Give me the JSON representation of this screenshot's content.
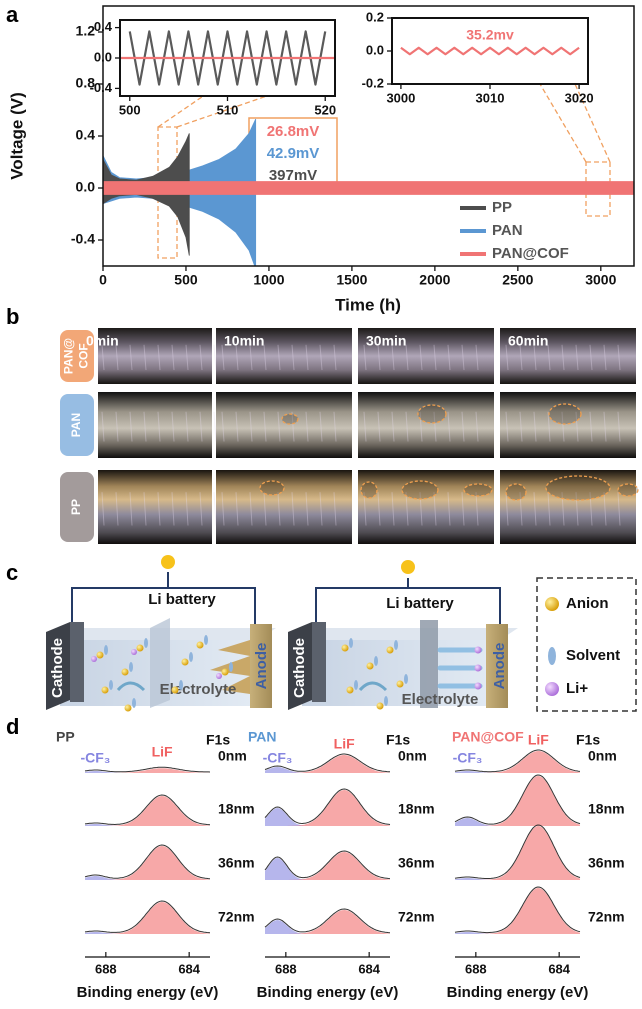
{
  "panel_labels": [
    "a",
    "b",
    "c",
    "d"
  ],
  "chart_data": [
    {
      "type": "line",
      "xlabel": "Time (h)",
      "ylabel": "Voltage (V)",
      "xlim": [
        0,
        3200
      ],
      "ylim": [
        -0.6,
        1.4
      ],
      "xticks": [
        0,
        500,
        1000,
        1500,
        2000,
        2500,
        3000
      ],
      "yticks": [
        -0.4,
        {
          "value": 0,
          "label": "0.0"
        },
        0.4,
        0.8,
        1.2
      ],
      "legend_position": "lower right",
      "series": [
        {
          "name": "PP",
          "color": "#4d4d4d",
          "x": [
            0,
            50,
            100,
            200,
            300,
            400,
            450,
            500,
            520
          ],
          "high": [
            0.22,
            0.1,
            0.07,
            0.06,
            0.09,
            0.16,
            0.24,
            0.36,
            0.42
          ],
          "low": [
            -0.12,
            -0.08,
            -0.06,
            -0.05,
            -0.08,
            -0.14,
            -0.22,
            -0.38,
            -0.52
          ]
        },
        {
          "name": "PAN",
          "color": "#5b97d2",
          "x": [
            0,
            50,
            100,
            200,
            300,
            400,
            500,
            600,
            700,
            800,
            880,
            920
          ],
          "high": [
            0.25,
            0.12,
            0.08,
            0.07,
            0.08,
            0.1,
            0.13,
            0.17,
            0.22,
            0.3,
            0.42,
            0.53
          ],
          "low": [
            -0.12,
            -0.1,
            -0.08,
            -0.07,
            -0.08,
            -0.1,
            -0.14,
            -0.18,
            -0.24,
            -0.34,
            -0.48,
            -0.62
          ]
        },
        {
          "name": "PAN@COF",
          "color": "#f07474",
          "x": [
            0,
            3200
          ],
          "high": [
            0.05,
            0.05
          ],
          "low": [
            -0.05,
            -0.05
          ]
        }
      ],
      "annotations": [
        {
          "text": "26.8mV",
          "color": "#f07474"
        },
        {
          "text": "42.9mV",
          "color": "#5b97d2"
        },
        {
          "text": "397mV",
          "color": "#4d4d4d"
        }
      ]
    },
    {
      "type": "line",
      "xlim": [
        499,
        521
      ],
      "ylim": [
        -0.5,
        0.5
      ],
      "xticks": [
        500,
        510,
        520
      ],
      "yticks": [
        -0.4,
        {
          "value": 0,
          "label": "0.0"
        },
        0.4
      ],
      "series": [
        {
          "name": "PP",
          "color": "#5a5a5a",
          "x": [
            500,
            501,
            502,
            503,
            504,
            505,
            506,
            507,
            508,
            509,
            510,
            511,
            512,
            513,
            514,
            515,
            516,
            517,
            518,
            519,
            520
          ],
          "values": [
            0.35,
            -0.35,
            0.35,
            -0.35,
            0.35,
            -0.35,
            0.35,
            -0.35,
            0.35,
            -0.35,
            0.35,
            -0.35,
            0.35,
            -0.35,
            0.35,
            -0.35,
            0.35,
            -0.35,
            0.35,
            -0.35,
            0.35
          ]
        },
        {
          "name": "PAN@COF",
          "color": "#f07474",
          "x": [
            499,
            521
          ],
          "values": [
            0,
            0
          ]
        }
      ]
    },
    {
      "type": "line",
      "xlim": [
        2999,
        3021
      ],
      "ylim": [
        -0.2,
        0.2
      ],
      "xticks": [
        3000,
        3010,
        3020
      ],
      "yticks": [
        -0.2,
        {
          "value": 0,
          "label": "0.0"
        },
        0.2
      ],
      "annotations": [
        {
          "text": "35.2mv",
          "color": "#f07474"
        }
      ],
      "series": [
        {
          "name": "PAN@COF",
          "color": "#f07474",
          "x": [
            3000,
            3001,
            3002,
            3003,
            3004,
            3005,
            3006,
            3007,
            3008,
            3009,
            3010,
            3011,
            3012,
            3013,
            3014,
            3015,
            3016,
            3017,
            3018,
            3019,
            3020
          ],
          "values": [
            0.02,
            -0.02,
            0.02,
            -0.02,
            0.02,
            -0.02,
            0.02,
            -0.02,
            0.02,
            -0.02,
            0.02,
            -0.02,
            0.02,
            -0.02,
            0.02,
            -0.02,
            0.02,
            -0.02,
            0.02,
            -0.02,
            0.02
          ]
        }
      ]
    },
    {
      "type": "area",
      "title": "PP",
      "core_level": "F1s",
      "xlabel": "Binding energy (eV)",
      "xlim": [
        689,
        683
      ],
      "xticks": [
        688,
        684
      ],
      "peak_labels": [
        "-CF₃",
        "LiF"
      ],
      "peak_positions": [
        688.5,
        685.3
      ],
      "peak_colors": [
        "#8585e0",
        "#f06060"
      ],
      "depths": [
        "0nm",
        "18nm",
        "36nm",
        "72nm"
      ],
      "cf3": [
        0.05,
        0.05,
        0.1,
        0.05
      ],
      "lif": [
        0.12,
        0.75,
        0.85,
        0.8
      ]
    },
    {
      "type": "area",
      "title": "PAN",
      "core_level": "F1s",
      "xlabel": "Binding energy (eV)",
      "xlim": [
        689,
        683
      ],
      "xticks": [
        688,
        684
      ],
      "peak_labels": [
        "-CF₃",
        "LiF"
      ],
      "peak_positions": [
        688.4,
        685.2
      ],
      "peak_colors": [
        "#8585e0",
        "#f06060"
      ],
      "depths": [
        "0nm",
        "18nm",
        "36nm",
        "72nm"
      ],
      "cf3": [
        0.15,
        0.45,
        0.55,
        0.35
      ],
      "lif": [
        0.45,
        0.9,
        0.7,
        0.6
      ]
    },
    {
      "type": "area",
      "title": "PAN@COF",
      "core_level": "F1s",
      "xlabel": "Binding energy (eV)",
      "xlim": [
        689,
        683
      ],
      "xticks": [
        688,
        684
      ],
      "peak_labels": [
        "-CF₃",
        "LiF"
      ],
      "peak_positions": [
        688.4,
        685.0
      ],
      "peak_colors": [
        "#8585e0",
        "#f06060"
      ],
      "depths": [
        "0nm",
        "18nm",
        "36nm",
        "72nm"
      ],
      "cf3": [
        0.05,
        0.2,
        0.05,
        0.05
      ],
      "lif": [
        0.55,
        1.25,
        1.35,
        1.15
      ]
    }
  ],
  "photos": {
    "times": [
      "0min",
      "10min",
      "30min",
      "60min"
    ],
    "rows": [
      [
        "PAN@",
        "COF"
      ],
      [
        "PAN"
      ],
      [
        "PP"
      ]
    ],
    "row_colors": [
      "#f2a777",
      "#97bde3",
      "#a39b9b"
    ]
  },
  "diagram": {
    "cells": [
      {
        "title": "Li battery",
        "cathode": "Cathode",
        "anode": "Anode",
        "electrolyte": "Electrolyte"
      },
      {
        "title": "Li battery",
        "cathode": "Cathode",
        "anode": "Anode",
        "electrolyte": "Electrolyte"
      }
    ],
    "legend": [
      "Anion",
      "Solvent",
      "Li+"
    ]
  }
}
